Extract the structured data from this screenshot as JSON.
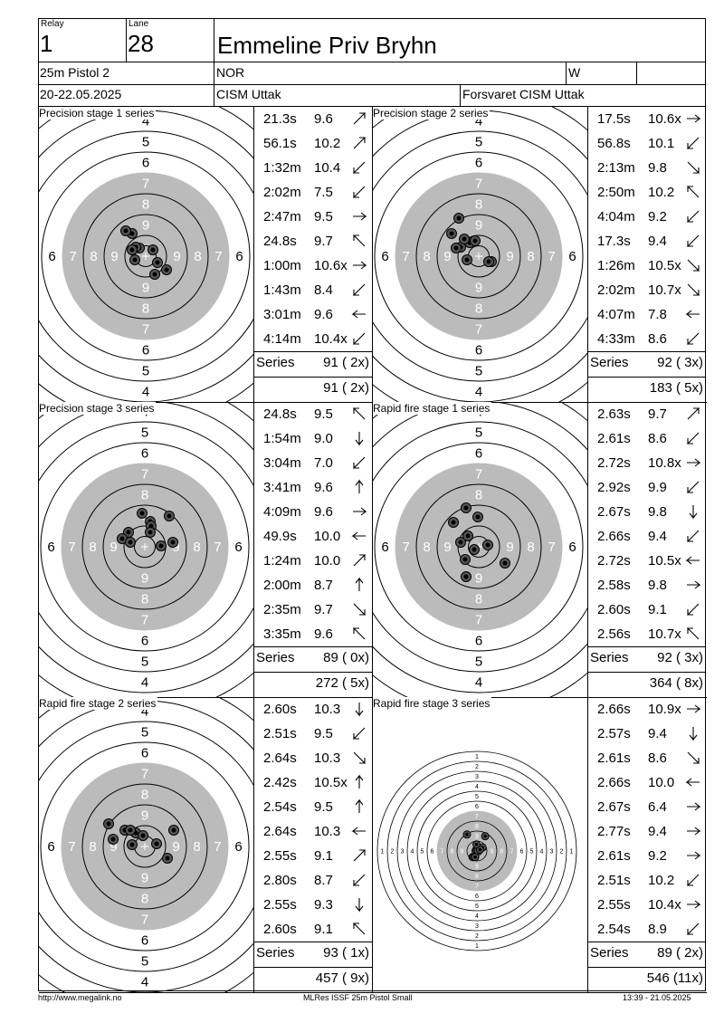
{
  "header": {
    "relay_label": "Relay",
    "relay": "1",
    "lane_label": "Lane",
    "lane": "28",
    "name": "Emmeline Priv Bryhn",
    "event": "25m Pistol 2",
    "nation": "NOR",
    "gender": "W",
    "date": "20-22.05.2025",
    "competition": "CISM Uttak",
    "club": "Forsvaret CISM Uttak"
  },
  "panels": [
    {
      "title": "Precision stage 1 series",
      "series_label": "Series",
      "series": "91 ( 2x)",
      "total": "91 ( 2x)",
      "shots": [
        [
          "21.3s",
          "9.6",
          "NE"
        ],
        [
          "56.1s",
          "10.2",
          "NE"
        ],
        [
          "1:32m",
          "10.4",
          "SW"
        ],
        [
          "2:02m",
          "7.5",
          "SW"
        ],
        [
          "2:47m",
          "9.5",
          "E"
        ],
        [
          "24.8s",
          "9.7",
          "NW"
        ],
        [
          "1:00m",
          "10.6x",
          "E"
        ],
        [
          "1:43m",
          "8.4",
          "SW"
        ],
        [
          "3:01m",
          "9.6",
          "W"
        ],
        [
          "4:14m",
          "10.4x",
          "SW"
        ]
      ]
    },
    {
      "title": "Precision stage 2 series",
      "series_label": "Series",
      "series": "92 ( 3x)",
      "total": "183 ( 5x)",
      "shots": [
        [
          "17.5s",
          "10.6x",
          "E"
        ],
        [
          "56.8s",
          "10.1",
          "SW"
        ],
        [
          "2:13m",
          "9.8",
          "SE"
        ],
        [
          "2:50m",
          "10.2",
          "NW"
        ],
        [
          "4:04m",
          "9.2",
          "SW"
        ],
        [
          "17.3s",
          "9.4",
          "SW"
        ],
        [
          "1:26m",
          "10.5x",
          "SE"
        ],
        [
          "2:02m",
          "10.7x",
          "SE"
        ],
        [
          "4:07m",
          "7.8",
          "W"
        ],
        [
          "4:33m",
          "8.6",
          "SW"
        ]
      ]
    },
    {
      "title": "Precision stage 3 series",
      "series_label": "Series",
      "series": "89 ( 0x)",
      "total": "272 ( 5x)",
      "shots": [
        [
          "24.8s",
          "9.5",
          "NW"
        ],
        [
          "1:54m",
          "9.0",
          "S"
        ],
        [
          "3:04m",
          "7.0",
          "SW"
        ],
        [
          "3:41m",
          "9.6",
          "N"
        ],
        [
          "4:09m",
          "9.6",
          "E"
        ],
        [
          "49.9s",
          "10.0",
          "W"
        ],
        [
          "1:24m",
          "10.0",
          "NE"
        ],
        [
          "2:00m",
          "8.7",
          "N"
        ],
        [
          "2:35m",
          "9.7",
          "SE"
        ],
        [
          "3:35m",
          "9.6",
          "NW"
        ]
      ]
    },
    {
      "title": "Rapid fire stage 1 series",
      "series_label": "Series",
      "series": "92 ( 3x)",
      "total": "364 ( 8x)",
      "shots": [
        [
          "2.63s",
          "9.7",
          "NE"
        ],
        [
          "2.61s",
          "8.6",
          "SW"
        ],
        [
          "2.72s",
          "10.8x",
          "E"
        ],
        [
          "2.92s",
          "9.9",
          "SW"
        ],
        [
          "2.67s",
          "9.8",
          "S"
        ],
        [
          "2.66s",
          "9.4",
          "SW"
        ],
        [
          "2.72s",
          "10.5x",
          "W"
        ],
        [
          "2.58s",
          "9.8",
          "E"
        ],
        [
          "2.60s",
          "9.1",
          "SW"
        ],
        [
          "2.56s",
          "10.7x",
          "NW"
        ]
      ]
    },
    {
      "title": "Rapid fire stage 2 series",
      "series_label": "Series",
      "series": "93 ( 1x)",
      "total": "457 ( 9x)",
      "shots": [
        [
          "2.60s",
          "10.3",
          "S"
        ],
        [
          "2.51s",
          "9.5",
          "SW"
        ],
        [
          "2.64s",
          "10.3",
          "SE"
        ],
        [
          "2.42s",
          "10.5x",
          "N"
        ],
        [
          "2.54s",
          "9.5",
          "N"
        ],
        [
          "2.64s",
          "10.3",
          "W"
        ],
        [
          "2.55s",
          "9.1",
          "NE"
        ],
        [
          "2.80s",
          "8.7",
          "SW"
        ],
        [
          "2.55s",
          "9.3",
          "S"
        ],
        [
          "2.60s",
          "9.1",
          "NW"
        ]
      ]
    },
    {
      "title": "Rapid fire stage 3 series",
      "series_label": "Series",
      "series": "89 ( 2x)",
      "total": "546 (11x)",
      "shots": [
        [
          "2.66s",
          "10.9x",
          "E"
        ],
        [
          "2.57s",
          "9.4",
          "S"
        ],
        [
          "2.61s",
          "8.6",
          "SE"
        ],
        [
          "2.66s",
          "10.0",
          "W"
        ],
        [
          "2.67s",
          "6.4",
          "E"
        ],
        [
          "2.77s",
          "9.4",
          "E"
        ],
        [
          "2.61s",
          "9.2",
          "E"
        ],
        [
          "2.51s",
          "10.2",
          "SW"
        ],
        [
          "2.55s",
          "10.4x",
          "E"
        ],
        [
          "2.54s",
          "8.9",
          "SW"
        ]
      ]
    }
  ],
  "footer": {
    "left": "http://www.megalink.no",
    "center": "MLRes ISSF 25m Pistol Small",
    "right": "13:39 - 21.05.2025"
  }
}
